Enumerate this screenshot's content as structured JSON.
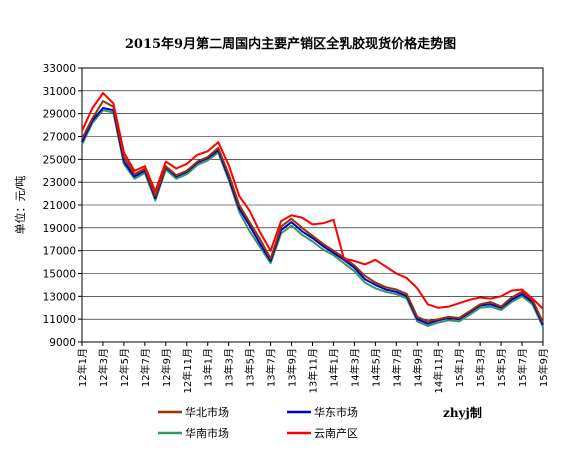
{
  "chart_data": {
    "type": "line",
    "title": "2015年9月第二周国内主要产销区全乳胶现货价格走势图",
    "ylabel": "单位：元/吨",
    "xlabel": "",
    "ylim": [
      9000,
      33000
    ],
    "yticks": [
      9000,
      11000,
      13000,
      15000,
      17000,
      19000,
      21000,
      23000,
      25000,
      27000,
      29000,
      31000,
      33000
    ],
    "xticks": [
      "12年1月",
      "12年3月",
      "12年5月",
      "12年7月",
      "12年9月",
      "12年11月",
      "13年1月",
      "13年3月",
      "13年5月",
      "13年7月",
      "13年9月",
      "13年11月",
      "14年1月",
      "14年3月",
      "14年5月",
      "14年7月",
      "14年9月",
      "14年11月",
      "15年1月",
      "15年3月",
      "15年5月",
      "15年7月",
      "15年9月"
    ],
    "grid": true,
    "legend_position": "bottom",
    "x": [
      "12年1月",
      "12年2月",
      "12年3月",
      "12年4月",
      "12年5月",
      "12年6月",
      "12年7月",
      "12年8月",
      "12年9月",
      "12年10月",
      "12年11月",
      "12年12月",
      "13年1月",
      "13年2月",
      "13年3月",
      "13年4月",
      "13年5月",
      "13年6月",
      "13年7月",
      "13年8月",
      "13年9月",
      "13年10月",
      "13年11月",
      "13年12月",
      "14年1月",
      "14年2月",
      "14年3月",
      "14年4月",
      "14年5月",
      "14年6月",
      "14年7月",
      "14年8月",
      "14年9月",
      "14年10月",
      "14年11月",
      "14年12月",
      "15年1月",
      "15年2月",
      "15年3月",
      "15年4月",
      "15年5月",
      "15年6月",
      "15年7月",
      "15年8月",
      "15年9月"
    ],
    "series": [
      {
        "name": "华北市场",
        "color": "#993300",
        "values": [
          26800,
          28600,
          30100,
          29600,
          25200,
          23700,
          24200,
          21800,
          24400,
          23600,
          24000,
          24800,
          25200,
          26000,
          23700,
          21000,
          19500,
          18000,
          16300,
          19100,
          19800,
          19000,
          18300,
          17600,
          17000,
          16400,
          15700,
          14800,
          14200,
          13800,
          13600,
          13200,
          11200,
          10800,
          11000,
          11200,
          11100,
          11700,
          12300,
          12500,
          12100,
          12900,
          13400,
          12700,
          10700
        ]
      },
      {
        "name": "华东市场",
        "color": "#0000cc",
        "values": [
          26500,
          28400,
          29500,
          29300,
          24800,
          23500,
          24000,
          21600,
          24300,
          23500,
          23900,
          24700,
          25100,
          25800,
          23400,
          20700,
          19200,
          17600,
          16100,
          18800,
          19500,
          18700,
          18100,
          17400,
          16800,
          16200,
          15500,
          14500,
          14000,
          13600,
          13400,
          13000,
          11000,
          10600,
          10900,
          11100,
          11000,
          11600,
          12200,
          12300,
          12000,
          12700,
          13200,
          12500,
          10500
        ]
      },
      {
        "name": "华南市场",
        "color": "#339966",
        "values": [
          26300,
          28200,
          29300,
          29100,
          24600,
          23300,
          23800,
          21400,
          24100,
          23300,
          23700,
          24500,
          24900,
          25600,
          23200,
          20400,
          18700,
          17300,
          15900,
          18500,
          19200,
          18400,
          17800,
          17100,
          16600,
          15900,
          15200,
          14200,
          13700,
          13400,
          13200,
          12800,
          10800,
          10400,
          10700,
          10900,
          10800,
          11400,
          12000,
          12100,
          11800,
          12500,
          13000,
          12300,
          10300
        ]
      },
      {
        "name": "云南产区",
        "color": "#ff0000",
        "values": [
          27500,
          29500,
          30800,
          29900,
          25600,
          24000,
          24400,
          22200,
          24800,
          24200,
          24600,
          25400,
          25700,
          26500,
          24500,
          21800,
          20500,
          18600,
          17000,
          19600,
          20100,
          19900,
          19300,
          19400,
          19700,
          16300,
          16100,
          15800,
          16200,
          15600,
          15000,
          14600,
          13700,
          12300,
          12000,
          12100,
          12400,
          12700,
          12900,
          12800,
          13000,
          13500,
          13600,
          12800,
          11900
        ]
      }
    ]
  },
  "credit": "zhyj制"
}
